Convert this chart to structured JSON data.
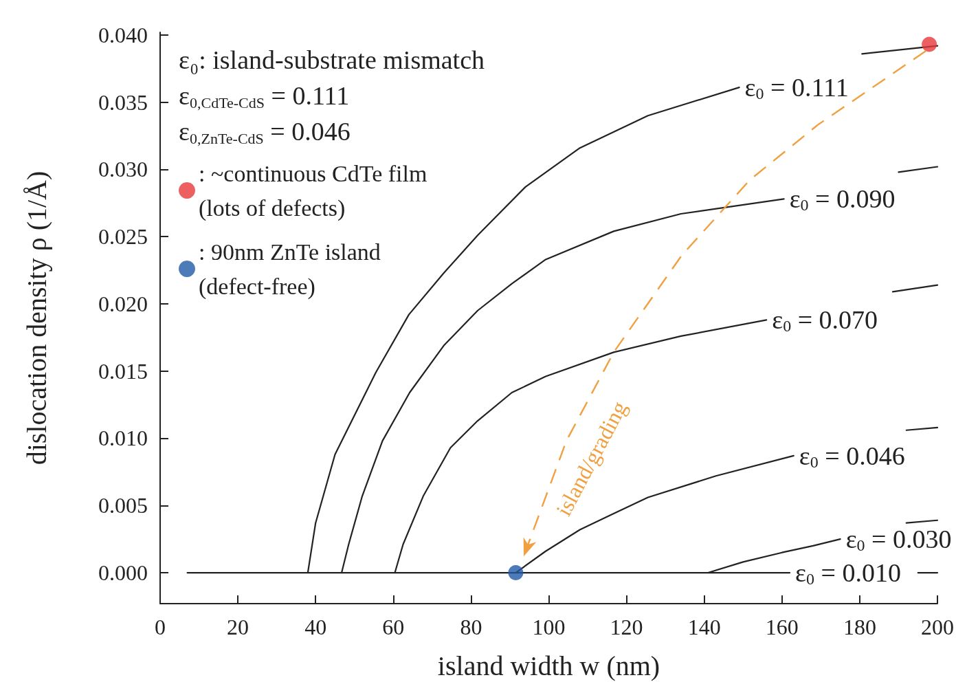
{
  "chart_data": {
    "type": "line",
    "xlabel": "island width w (nm)",
    "ylabel": "dislocation density ρ (1/Å)",
    "xlim": [
      0,
      200
    ],
    "ylim": [
      -0.0023,
      0.0402
    ],
    "xticks": [
      0,
      20,
      40,
      60,
      80,
      100,
      120,
      140,
      160,
      180,
      200
    ],
    "yticks": [
      {
        "value": 0,
        "label": "0.000"
      },
      {
        "value": 0.005,
        "label": "0.005"
      },
      {
        "value": 0.01,
        "label": "0.010"
      },
      {
        "value": 0.015,
        "label": "0.015"
      },
      {
        "value": 0.02,
        "label": "0.020"
      },
      {
        "value": 0.025,
        "label": "0.025"
      },
      {
        "value": 0.03,
        "label": "0.030"
      },
      {
        "value": 0.035,
        "label": "0.035"
      },
      {
        "value": 0.04,
        "label": "0.040"
      }
    ],
    "grid": false,
    "legend": "top left",
    "line_style": "solid",
    "annotations": [
      "ε₀: island-substrate mismatch",
      "ε$_{0,CdTe-CdS}$ = 0.111",
      "ε$_{0,ZnTe-CdS}$ = 0.046",
      "island/grading"
    ],
    "series": [
      {
        "name": "ε$_{0}$ = 0.111",
        "color": "#222222",
        "x": [
          38,
          40,
          45,
          55.5,
          64,
          73,
          81.7,
          94,
          108,
          125.5,
          149,
          165,
          180.6,
          200
        ],
        "values": [
          0,
          0.0037,
          0.0088,
          0.0149,
          0.0192,
          0.0223,
          0.0251,
          0.0287,
          0.0316,
          0.034,
          0.0361,
          null,
          0.0386,
          0.0392
        ]
      },
      {
        "name": "ε$_{0}$ = 0.090",
        "color": "#222222",
        "x": [
          46.7,
          48.5,
          52,
          57.2,
          64.2,
          73,
          81.7,
          90.5,
          99.2,
          116.7,
          134,
          160.5,
          175,
          190,
          200
        ],
        "values": [
          0,
          0.0021,
          0.0057,
          0.0098,
          0.0134,
          0.0169,
          0.0195,
          0.0215,
          0.0233,
          0.0254,
          0.0267,
          0.0278,
          null,
          0.0298,
          0.0302
        ]
      },
      {
        "name": "ε$_{0}$ = 0.070",
        "color": "#222222",
        "x": [
          60.4,
          62.5,
          67.7,
          74.7,
          81.7,
          90.5,
          99.2,
          116.7,
          134,
          156,
          170,
          188.5,
          200
        ],
        "values": [
          0,
          0.0021,
          0.0057,
          0.0093,
          0.0113,
          0.0134,
          0.0146,
          0.0164,
          0.0176,
          0.0188,
          null,
          0.0209,
          0.0214
        ]
      },
      {
        "name": "ε$_{0}$ = 0.046",
        "color": "#222222",
        "x": [
          91.5,
          99.2,
          108,
          116.7,
          125.5,
          143,
          163,
          175,
          192,
          200
        ],
        "values": [
          0,
          0.0016,
          0.0032,
          0.0044,
          0.0056,
          0.0072,
          0.0087,
          null,
          0.0106,
          0.0108
        ]
      },
      {
        "name": "ε$_{0}$ = 0.030",
        "color": "#222222",
        "x": [
          141,
          150,
          160,
          168,
          175,
          185,
          192,
          200
        ],
        "values": [
          0,
          0.0008,
          0.0015,
          0.002,
          0.0025,
          null,
          0.0037,
          0.0039
        ]
      },
      {
        "name": "ε$_{0}$ = 0.010",
        "color": "#222222",
        "x": [
          7,
          162,
          175,
          195,
          200
        ],
        "values": [
          0,
          0,
          null,
          0,
          0
        ]
      },
      {
        "type": "scatter",
        "marker": "circle",
        "name": ": ~continuous CdTe film (lots of defects)",
        "color": "#e8383a",
        "x": [
          197.9
        ],
        "values": [
          0.0393
        ]
      },
      {
        "type": "scatter",
        "marker": "circle",
        "name": ": 90nm ZnTe island (defect-free)",
        "color": "#1f5aa6",
        "x": [
          91.5
        ],
        "values": [
          0
        ]
      }
    ]
  }
}
